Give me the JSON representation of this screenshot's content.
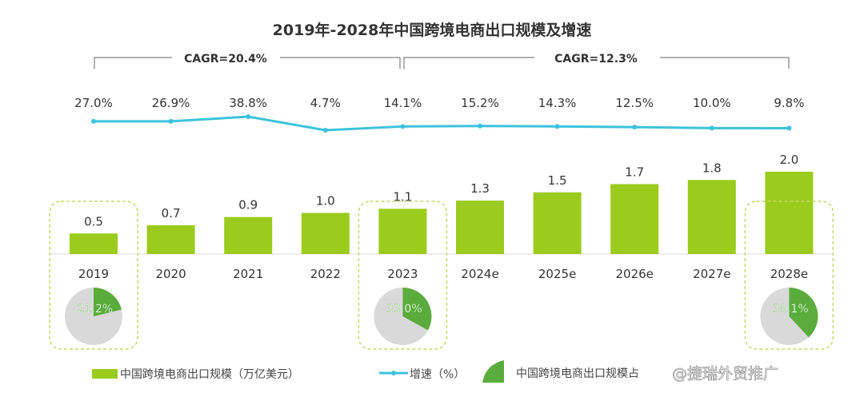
{
  "chart_data": {
    "type": "bar+line",
    "title": "2019年-2028年中国跨境电商出口规模及增速",
    "categories": [
      "2019",
      "2020",
      "2021",
      "2022",
      "2023",
      "2024e",
      "2025e",
      "2026e",
      "2027e",
      "2028e"
    ],
    "series": [
      {
        "name": "中国跨境电商出口规模（万亿美元）",
        "type": "bar",
        "color": "#9bcb1c",
        "values": [
          0.5,
          0.7,
          0.9,
          1.0,
          1.1,
          1.3,
          1.5,
          1.7,
          1.8,
          2.0
        ]
      },
      {
        "name": "增速（%）",
        "type": "line",
        "color": "#3cc3dc",
        "values": [
          27.0,
          26.9,
          38.8,
          4.7,
          14.1,
          15.2,
          14.3,
          12.5,
          10.0,
          9.8
        ]
      }
    ],
    "growth_labels": [
      "27.0%",
      "26.9%",
      "38.8%",
      "4.7%",
      "14.1%",
      "15.2%",
      "14.3%",
      "12.5%",
      "10.0%",
      "9.8%"
    ],
    "pies": [
      {
        "year": "2019",
        "value": 21.2,
        "label": "21.2%"
      },
      {
        "year": "2023",
        "value": 33.0,
        "label": "33.0%"
      },
      {
        "year": "2028e",
        "value": 38.1,
        "label": "38.1%"
      }
    ],
    "pie_color": "#5aad3c",
    "pie_rest_color": "#d9d9d9",
    "cagr": [
      {
        "label": "CAGR=20.4%",
        "from": "2019",
        "to": "2023"
      },
      {
        "label": "CAGR=12.3%",
        "from": "2023",
        "to": "2028e"
      }
    ],
    "legend": [
      "中国跨境电商出口规模（万亿美元）",
      "增速（%）",
      "中国跨境电商出口规模占"
    ],
    "watermark": "@捷瑞外贸推广"
  }
}
